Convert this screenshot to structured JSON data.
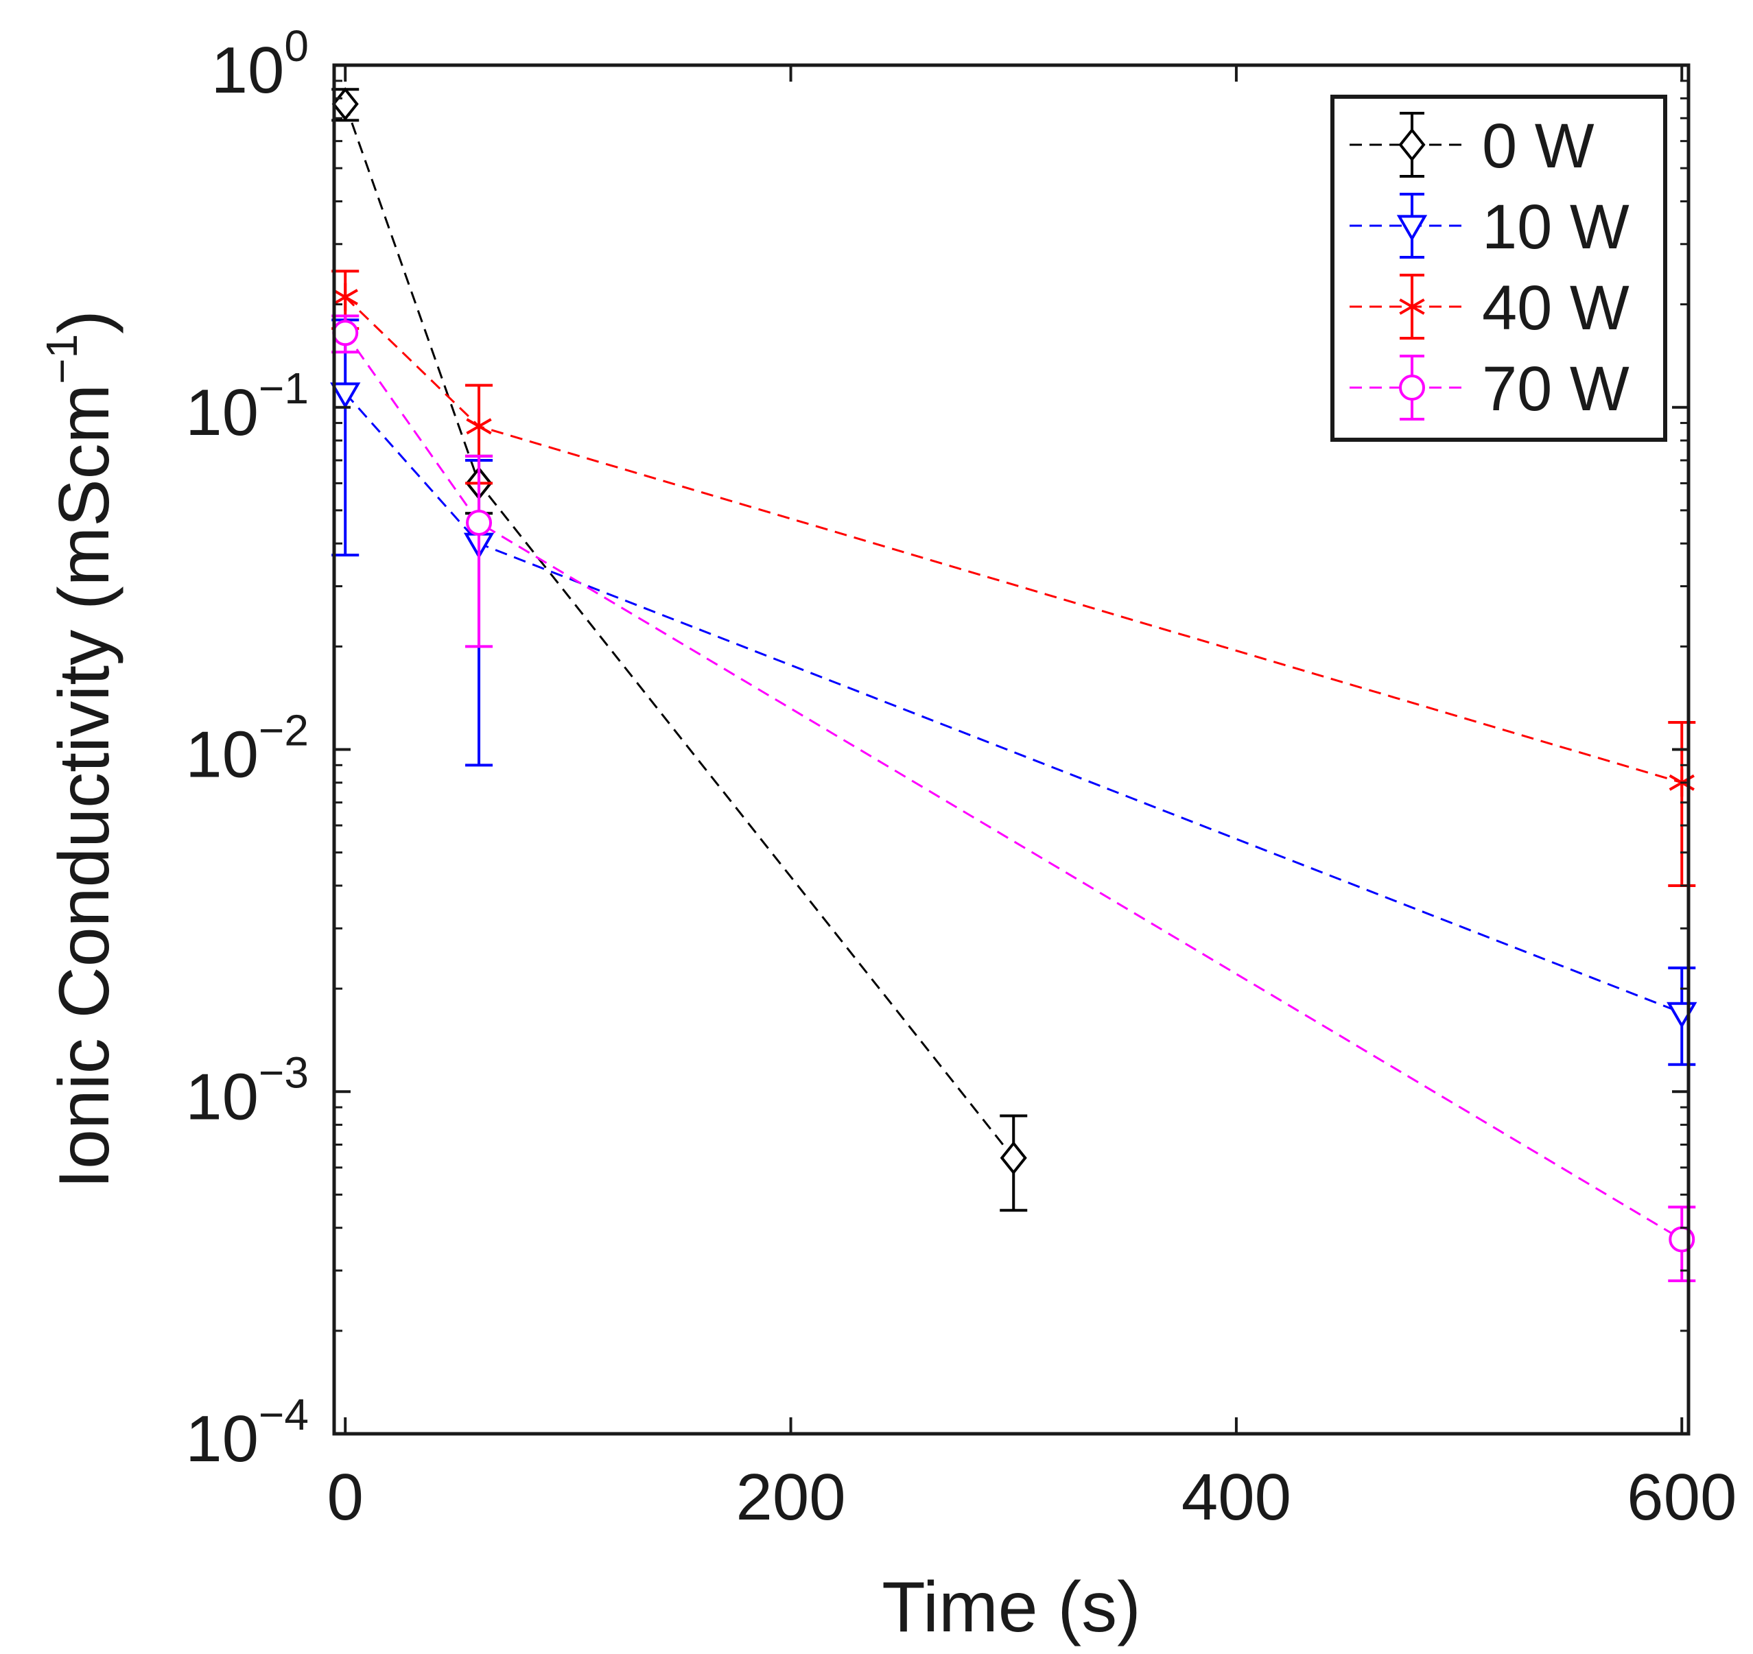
{
  "chart_data": {
    "type": "line",
    "title": "",
    "xlabel": "Time (s)",
    "ylabel": "Ionic Conductivity (mScm",
    "ylabel_exponent": "−1",
    "ylabel_suffix": ")",
    "yscale": "log",
    "xlim": [
      -5,
      603
    ],
    "ylim": [
      0.0001,
      1
    ],
    "x_ticks": [
      {
        "value": 0,
        "label": "0"
      },
      {
        "value": 200,
        "label": "200"
      },
      {
        "value": 400,
        "label": "400"
      },
      {
        "value": 600,
        "label": "600"
      }
    ],
    "y_ticks": [
      {
        "value": 1,
        "base": "10",
        "exp": "0"
      },
      {
        "value": 0.1,
        "base": "10",
        "exp": "−1"
      },
      {
        "value": 0.01,
        "base": "10",
        "exp": "−2"
      },
      {
        "value": 0.001,
        "base": "10",
        "exp": "−3"
      },
      {
        "value": 0.0001,
        "base": "10",
        "exp": "−4"
      }
    ],
    "legend_position": "top-right",
    "series": [
      {
        "name": "0 W",
        "color": "#000000",
        "marker": "diamond",
        "points": [
          {
            "x": 0,
            "y": 0.77,
            "lo": 0.69,
            "hi": 0.85
          },
          {
            "x": 60,
            "y": 0.06,
            "lo": 0.049,
            "hi": 0.072
          },
          {
            "x": 300,
            "y": 0.00064,
            "lo": 0.00045,
            "hi": 0.00085
          }
        ]
      },
      {
        "name": "10 W",
        "color": "#0000ff",
        "marker": "triangle-down",
        "points": [
          {
            "x": 0,
            "y": 0.11,
            "lo": 0.037,
            "hi": 0.18
          },
          {
            "x": 60,
            "y": 0.04,
            "lo": 0.009,
            "hi": 0.07
          },
          {
            "x": 600,
            "y": 0.0017,
            "lo": 0.0012,
            "hi": 0.0023
          }
        ]
      },
      {
        "name": "40 W",
        "color": "#ff0000",
        "marker": "asterisk",
        "points": [
          {
            "x": 0,
            "y": 0.21,
            "lo": 0.17,
            "hi": 0.25
          },
          {
            "x": 60,
            "y": 0.088,
            "lo": 0.06,
            "hi": 0.116
          },
          {
            "x": 600,
            "y": 0.008,
            "lo": 0.004,
            "hi": 0.012
          }
        ]
      },
      {
        "name": "70 W",
        "color": "#ff00ff",
        "marker": "circle",
        "points": [
          {
            "x": 0,
            "y": 0.165,
            "lo": 0.145,
            "hi": 0.185
          },
          {
            "x": 60,
            "y": 0.046,
            "lo": 0.02,
            "hi": 0.072
          },
          {
            "x": 600,
            "y": 0.00037,
            "lo": 0.00028,
            "hi": 0.00046
          }
        ]
      }
    ]
  }
}
